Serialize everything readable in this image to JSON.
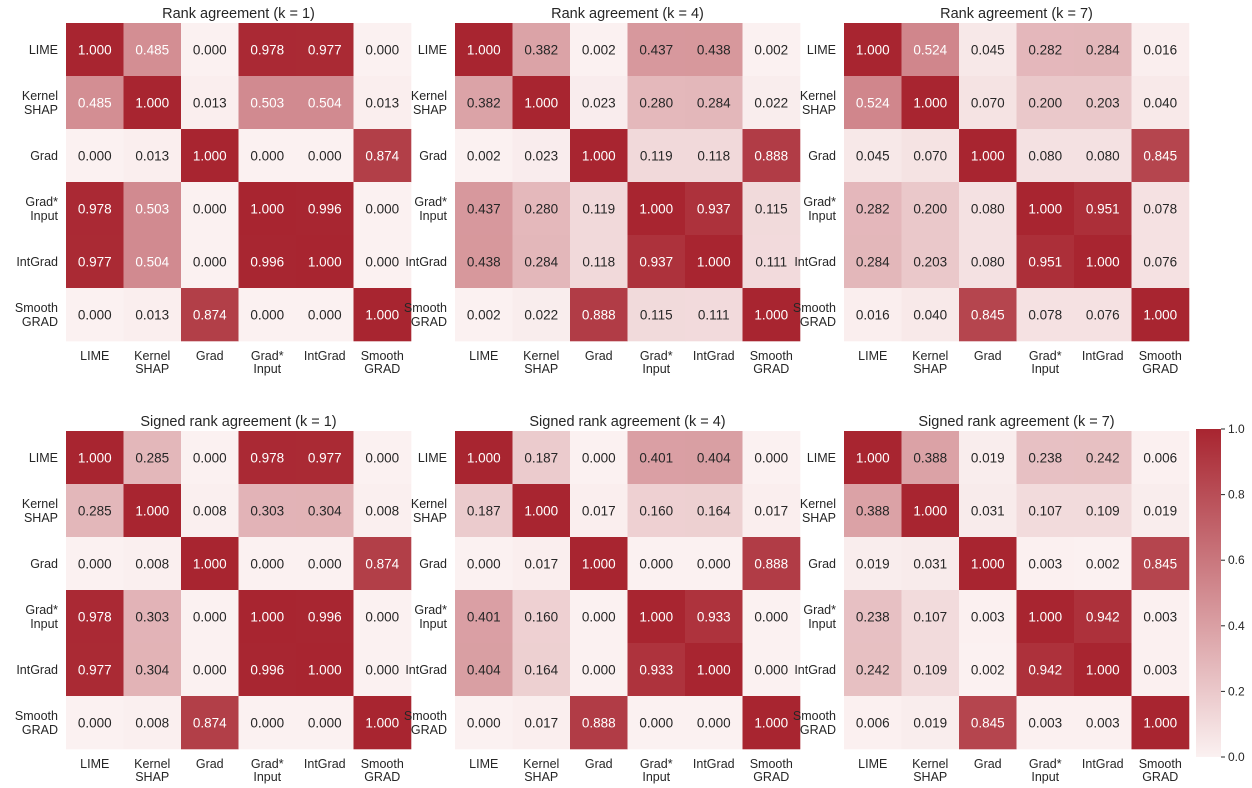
{
  "colormap": {
    "low": "#fbf1f1",
    "high": "#a82530",
    "text_light": "#ffffff",
    "text_dark": "#262626"
  },
  "chart_data": [
    {
      "type": "heatmap",
      "title": "Rank agreement (k = 1)",
      "row_labels": [
        [
          "LIME"
        ],
        [
          "Kernel",
          "SHAP"
        ],
        [
          "Grad"
        ],
        [
          "Grad*",
          "Input"
        ],
        [
          "IntGrad"
        ],
        [
          "Smooth",
          "GRAD"
        ]
      ],
      "col_labels": [
        [
          "LIME"
        ],
        [
          "Kernel",
          "SHAP"
        ],
        [
          "Grad"
        ],
        [
          "Grad*",
          "Input"
        ],
        [
          "IntGrad"
        ],
        [
          "Smooth",
          "GRAD"
        ]
      ],
      "values": [
        [
          1.0,
          0.485,
          0.0,
          0.978,
          0.977,
          0.0
        ],
        [
          0.485,
          1.0,
          0.013,
          0.503,
          0.504,
          0.013
        ],
        [
          0.0,
          0.013,
          1.0,
          0.0,
          0.0,
          0.874
        ],
        [
          0.978,
          0.503,
          0.0,
          1.0,
          0.996,
          0.0
        ],
        [
          0.977,
          0.504,
          0.0,
          0.996,
          1.0,
          0.0
        ],
        [
          0.0,
          0.013,
          0.874,
          0.0,
          0.0,
          1.0
        ]
      ]
    },
    {
      "type": "heatmap",
      "title": "Rank agreement (k = 4)",
      "row_labels": [
        [
          "LIME"
        ],
        [
          "Kernel",
          "SHAP"
        ],
        [
          "Grad"
        ],
        [
          "Grad*",
          "Input"
        ],
        [
          "IntGrad"
        ],
        [
          "Smooth",
          "GRAD"
        ]
      ],
      "col_labels": [
        [
          "LIME"
        ],
        [
          "Kernel",
          "SHAP"
        ],
        [
          "Grad"
        ],
        [
          "Grad*",
          "Input"
        ],
        [
          "IntGrad"
        ],
        [
          "Smooth",
          "GRAD"
        ]
      ],
      "values": [
        [
          1.0,
          0.382,
          0.002,
          0.437,
          0.438,
          0.002
        ],
        [
          0.382,
          1.0,
          0.023,
          0.28,
          0.284,
          0.022
        ],
        [
          0.002,
          0.023,
          1.0,
          0.119,
          0.118,
          0.888
        ],
        [
          0.437,
          0.28,
          0.119,
          1.0,
          0.937,
          0.115
        ],
        [
          0.438,
          0.284,
          0.118,
          0.937,
          1.0,
          0.111
        ],
        [
          0.002,
          0.022,
          0.888,
          0.115,
          0.111,
          1.0
        ]
      ]
    },
    {
      "type": "heatmap",
      "title": "Rank agreement (k = 7)",
      "row_labels": [
        [
          "LIME"
        ],
        [
          "Kernel",
          "SHAP"
        ],
        [
          "Grad"
        ],
        [
          "Grad*",
          "Input"
        ],
        [
          "IntGrad"
        ],
        [
          "Smooth",
          "GRAD"
        ]
      ],
      "col_labels": [
        [
          "LIME"
        ],
        [
          "Kernel",
          "SHAP"
        ],
        [
          "Grad"
        ],
        [
          "Grad*",
          "Input"
        ],
        [
          "IntGrad"
        ],
        [
          "Smooth",
          "GRAD"
        ]
      ],
      "values": [
        [
          1.0,
          0.524,
          0.045,
          0.282,
          0.284,
          0.016
        ],
        [
          0.524,
          1.0,
          0.07,
          0.2,
          0.203,
          0.04
        ],
        [
          0.045,
          0.07,
          1.0,
          0.08,
          0.08,
          0.845
        ],
        [
          0.282,
          0.2,
          0.08,
          1.0,
          0.951,
          0.078
        ],
        [
          0.284,
          0.203,
          0.08,
          0.951,
          1.0,
          0.076
        ],
        [
          0.016,
          0.04,
          0.845,
          0.078,
          0.076,
          1.0
        ]
      ]
    },
    {
      "type": "heatmap",
      "title": "Signed rank agreement (k = 1)",
      "row_labels": [
        [
          "LIME"
        ],
        [
          "Kernel",
          "SHAP"
        ],
        [
          "Grad"
        ],
        [
          "Grad*",
          "Input"
        ],
        [
          "IntGrad"
        ],
        [
          "Smooth",
          "GRAD"
        ]
      ],
      "col_labels": [
        [
          "LIME"
        ],
        [
          "Kernel",
          "SHAP"
        ],
        [
          "Grad"
        ],
        [
          "Grad*",
          "Input"
        ],
        [
          "IntGrad"
        ],
        [
          "Smooth",
          "GRAD"
        ]
      ],
      "values": [
        [
          1.0,
          0.285,
          0.0,
          0.978,
          0.977,
          0.0
        ],
        [
          0.285,
          1.0,
          0.008,
          0.303,
          0.304,
          0.008
        ],
        [
          0.0,
          0.008,
          1.0,
          0.0,
          0.0,
          0.874
        ],
        [
          0.978,
          0.303,
          0.0,
          1.0,
          0.996,
          0.0
        ],
        [
          0.977,
          0.304,
          0.0,
          0.996,
          1.0,
          0.0
        ],
        [
          0.0,
          0.008,
          0.874,
          0.0,
          0.0,
          1.0
        ]
      ]
    },
    {
      "type": "heatmap",
      "title": "Signed rank agreement (k = 4)",
      "row_labels": [
        [
          "LIME"
        ],
        [
          "Kernel",
          "SHAP"
        ],
        [
          "Grad"
        ],
        [
          "Grad*",
          "Input"
        ],
        [
          "IntGrad"
        ],
        [
          "Smooth",
          "GRAD"
        ]
      ],
      "col_labels": [
        [
          "LIME"
        ],
        [
          "Kernel",
          "SHAP"
        ],
        [
          "Grad"
        ],
        [
          "Grad*",
          "Input"
        ],
        [
          "IntGrad"
        ],
        [
          "Smooth",
          "GRAD"
        ]
      ],
      "values": [
        [
          1.0,
          0.187,
          0.0,
          0.401,
          0.404,
          0.0
        ],
        [
          0.187,
          1.0,
          0.017,
          0.16,
          0.164,
          0.017
        ],
        [
          0.0,
          0.017,
          1.0,
          0.0,
          0.0,
          0.888
        ],
        [
          0.401,
          0.16,
          0.0,
          1.0,
          0.933,
          0.0
        ],
        [
          0.404,
          0.164,
          0.0,
          0.933,
          1.0,
          0.0
        ],
        [
          0.0,
          0.017,
          0.888,
          0.0,
          0.0,
          1.0
        ]
      ]
    },
    {
      "type": "heatmap",
      "title": "Signed rank agreement (k = 7)",
      "row_labels": [
        [
          "LIME"
        ],
        [
          "Kernel",
          "SHAP"
        ],
        [
          "Grad"
        ],
        [
          "Grad*",
          "Input"
        ],
        [
          "IntGrad"
        ],
        [
          "Smooth",
          "GRAD"
        ]
      ],
      "col_labels": [
        [
          "LIME"
        ],
        [
          "Kernel",
          "SHAP"
        ],
        [
          "Grad"
        ],
        [
          "Grad*",
          "Input"
        ],
        [
          "IntGrad"
        ],
        [
          "Smooth",
          "GRAD"
        ]
      ],
      "values": [
        [
          1.0,
          0.388,
          0.019,
          0.238,
          0.242,
          0.006
        ],
        [
          0.388,
          1.0,
          0.031,
          0.107,
          0.109,
          0.019
        ],
        [
          0.019,
          0.031,
          1.0,
          0.003,
          0.002,
          0.845
        ],
        [
          0.238,
          0.107,
          0.003,
          1.0,
          0.942,
          0.003
        ],
        [
          0.242,
          0.109,
          0.002,
          0.942,
          1.0,
          0.003
        ],
        [
          0.006,
          0.019,
          0.845,
          0.003,
          0.003,
          1.0
        ]
      ]
    }
  ],
  "colorbar": {
    "min": 0.0,
    "max": 1.0,
    "ticks": [
      0.0,
      0.2,
      0.4,
      0.6,
      0.8,
      1.0
    ],
    "tick_labels": [
      "0.0",
      "0.2",
      "0.4",
      "0.6",
      "0.8",
      "1.0"
    ]
  }
}
